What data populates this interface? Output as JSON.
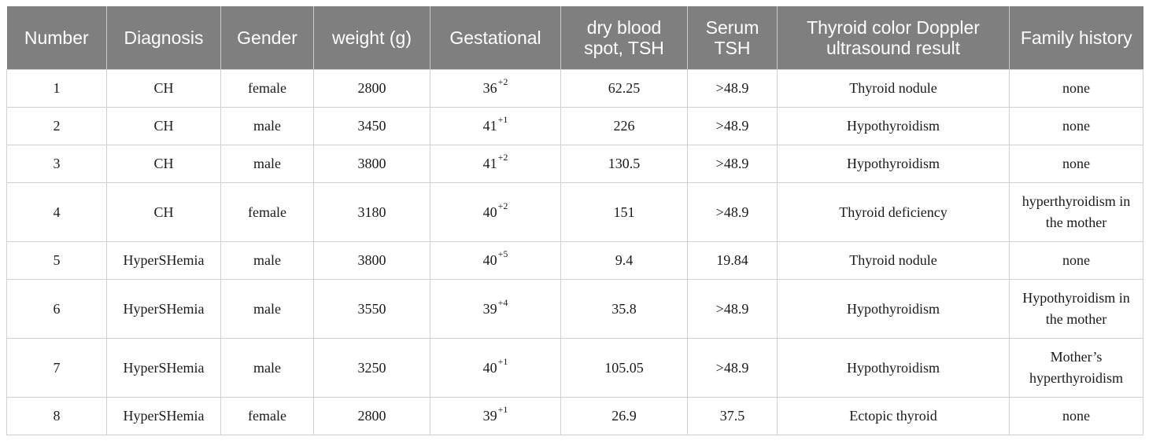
{
  "table": {
    "headers": [
      "Number",
      "Diagnosis",
      "Gender",
      "weight (g)",
      "Gestational",
      "dry blood spot, TSH",
      "Serum TSH",
      "Thyroid color Doppler ultrasound result",
      "Family history"
    ],
    "rows": [
      {
        "number": "1",
        "diagnosis": "CH",
        "gender": "female",
        "weight": "2800",
        "gest_weeks": "36",
        "gest_days": "+2",
        "dbs_tsh": "62.25",
        "serum_tsh": ">48.9",
        "ultrasound": "Thyroid nodule",
        "family": "none"
      },
      {
        "number": "2",
        "diagnosis": "CH",
        "gender": "male",
        "weight": "3450",
        "gest_weeks": "41",
        "gest_days": "+1",
        "dbs_tsh": "226",
        "serum_tsh": ">48.9",
        "ultrasound": "Hypothyroidism",
        "family": "none"
      },
      {
        "number": "3",
        "diagnosis": "CH",
        "gender": "male",
        "weight": "3800",
        "gest_weeks": "41",
        "gest_days": "+2",
        "dbs_tsh": "130.5",
        "serum_tsh": ">48.9",
        "ultrasound": "Hypothyroidism",
        "family": "none"
      },
      {
        "number": "4",
        "diagnosis": "CH",
        "gender": "female",
        "weight": "3180",
        "gest_weeks": "40",
        "gest_days": "+2",
        "dbs_tsh": "151",
        "serum_tsh": ">48.9",
        "ultrasound": "Thyroid deficiency",
        "family": "hyperthyroidism in the mother"
      },
      {
        "number": "5",
        "diagnosis": "HyperSHemia",
        "gender": "male",
        "weight": "3800",
        "gest_weeks": "40",
        "gest_days": "+5",
        "dbs_tsh": "9.4",
        "serum_tsh": "19.84",
        "ultrasound": "Thyroid nodule",
        "family": "none"
      },
      {
        "number": "6",
        "diagnosis": "HyperSHemia",
        "gender": "male",
        "weight": "3550",
        "gest_weeks": "39",
        "gest_days": "+4",
        "dbs_tsh": "35.8",
        "serum_tsh": ">48.9",
        "ultrasound": "Hypothyroidism",
        "family": "Hypothyroidism in the mother"
      },
      {
        "number": "7",
        "diagnosis": "HyperSHemia",
        "gender": "male",
        "weight": "3250",
        "gest_weeks": "40",
        "gest_days": "+1",
        "dbs_tsh": "105.05",
        "serum_tsh": ">48.9",
        "ultrasound": "Hypothyroidism",
        "family": "Mother’s hyperthyroidism"
      },
      {
        "number": "8",
        "diagnosis": "HyperSHemia",
        "gender": "female",
        "weight": "2800",
        "gest_weeks": "39",
        "gest_days": "+1",
        "dbs_tsh": "26.9",
        "serum_tsh": "37.5",
        "ultrasound": "Ectopic thyroid",
        "family": "none"
      }
    ]
  },
  "colors": {
    "header_bg": "#7f7f7f",
    "header_text": "#ffffff",
    "grid": "#cfcfcf"
  }
}
